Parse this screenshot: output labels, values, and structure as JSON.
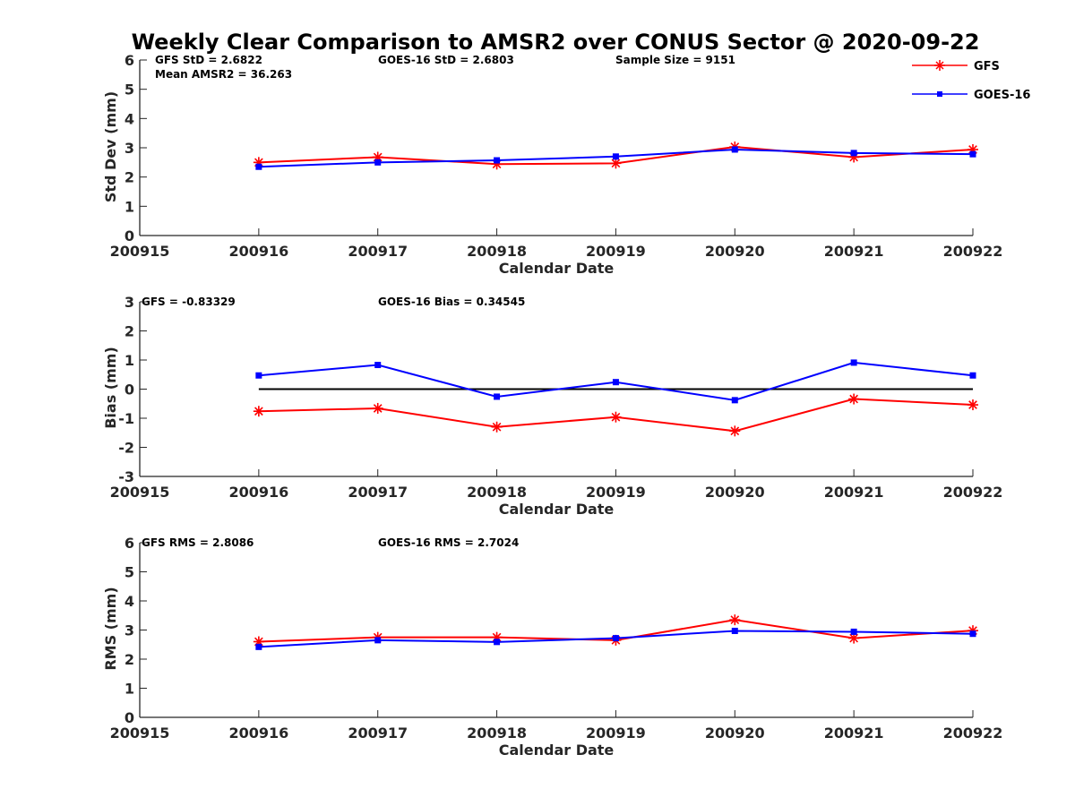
{
  "chart_data": {
    "type": "line",
    "title": "Weekly Clear Comparison to AMSR2 over CONUS Sector @ 2020-09-22",
    "x_ticks": [
      "200915",
      "200916",
      "200917",
      "200918",
      "200919",
      "200920",
      "200921",
      "200922"
    ],
    "legend": {
      "placement": "top-right",
      "entries": [
        {
          "name": "GFS",
          "color": "#ff0000",
          "marker": "asterisk"
        },
        {
          "name": "GOES-16",
          "color": "#0000ff",
          "marker": "square"
        }
      ]
    },
    "panels": [
      {
        "ylabel": "Std Dev (mm)",
        "xlabel": "Calendar Date",
        "ylim": [
          0,
          6
        ],
        "yticks": [
          "0",
          "1",
          "2",
          "3",
          "4",
          "5",
          "6"
        ],
        "zero_line": false,
        "annotations": [
          "GFS StD = 2.6822",
          "Mean AMSR2 = 36.263",
          "GOES-16 StD = 2.6803",
          "Sample Size = 9151"
        ],
        "series": [
          {
            "name": "GFS",
            "color": "#ff0000",
            "marker": "asterisk",
            "x": [
              "200916",
              "200917",
              "200918",
              "200919",
              "200920",
              "200921",
              "200922"
            ],
            "values": [
              2.5,
              2.68,
              2.44,
              2.47,
              3.03,
              2.68,
              2.94
            ]
          },
          {
            "name": "GOES-16",
            "color": "#0000ff",
            "marker": "square",
            "x": [
              "200916",
              "200917",
              "200918",
              "200919",
              "200920",
              "200921",
              "200922"
            ],
            "values": [
              2.35,
              2.5,
              2.57,
              2.7,
              2.94,
              2.82,
              2.78
            ]
          }
        ]
      },
      {
        "ylabel": "Bias (mm)",
        "xlabel": "Calendar Date",
        "ylim": [
          -3,
          3
        ],
        "yticks": [
          "-3",
          "-2",
          "-1",
          "0",
          "1",
          "2",
          "3"
        ],
        "zero_line": true,
        "annotations": [
          "GFS = -0.83329",
          "GOES-16 Bias  = 0.34545"
        ],
        "series": [
          {
            "name": "GFS",
            "color": "#ff0000",
            "marker": "asterisk",
            "x": [
              "200916",
              "200917",
              "200918",
              "200919",
              "200920",
              "200921",
              "200922"
            ],
            "values": [
              -0.76,
              -0.66,
              -1.3,
              -0.96,
              -1.44,
              -0.34,
              -0.54
            ]
          },
          {
            "name": "GOES-16",
            "color": "#0000ff",
            "marker": "square",
            "x": [
              "200916",
              "200917",
              "200918",
              "200919",
              "200920",
              "200921",
              "200922"
            ],
            "values": [
              0.47,
              0.83,
              -0.26,
              0.24,
              -0.38,
              0.91,
              0.47
            ]
          }
        ]
      },
      {
        "ylabel": "RMS (mm)",
        "xlabel": "Calendar Date",
        "ylim": [
          0,
          6
        ],
        "yticks": [
          "0",
          "1",
          "2",
          "3",
          "4",
          "5",
          "6"
        ],
        "zero_line": false,
        "annotations": [
          "GFS RMS = 2.8086",
          "GOES-16 RMS = 2.7024"
        ],
        "series": [
          {
            "name": "GFS",
            "color": "#ff0000",
            "marker": "asterisk",
            "x": [
              "200916",
              "200917",
              "200918",
              "200919",
              "200920",
              "200921",
              "200922"
            ],
            "values": [
              2.6,
              2.75,
              2.75,
              2.65,
              3.35,
              2.72,
              2.98
            ]
          },
          {
            "name": "GOES-16",
            "color": "#0000ff",
            "marker": "square",
            "x": [
              "200916",
              "200917",
              "200918",
              "200919",
              "200920",
              "200921",
              "200922"
            ],
            "values": [
              2.42,
              2.65,
              2.59,
              2.72,
              2.97,
              2.94,
              2.87
            ]
          }
        ]
      }
    ]
  }
}
